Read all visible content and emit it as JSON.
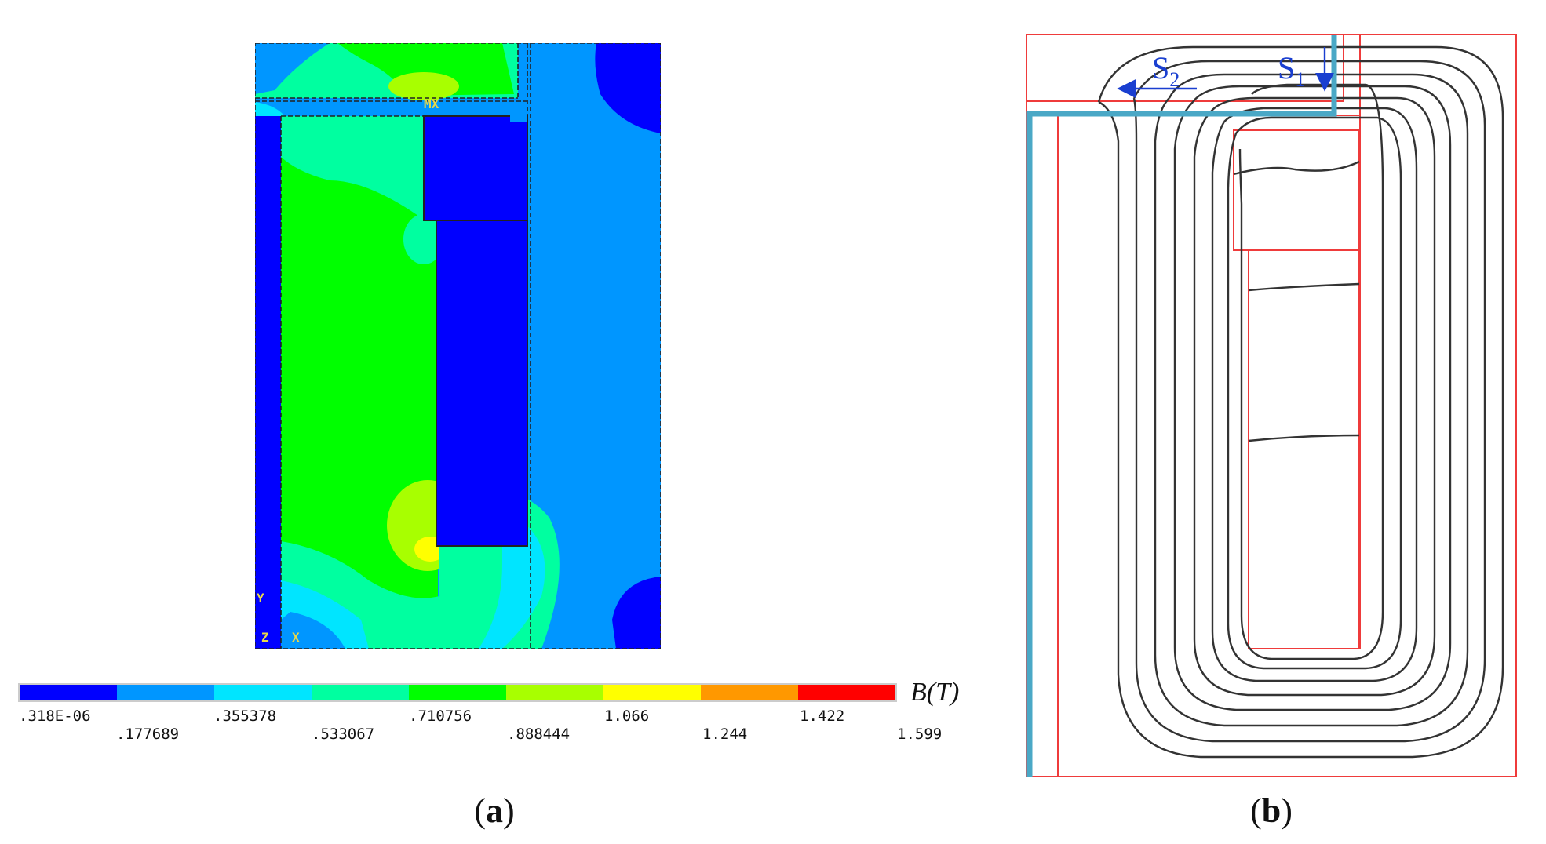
{
  "colors": {
    "bands": [
      "#0000ff",
      "#0096ff",
      "#00e5ff",
      "#00ffa0",
      "#00ff00",
      "#a8ff00",
      "#ffff00",
      "#ff9800",
      "#ff0000"
    ],
    "outline_red": "#ef3b3b",
    "path_blue": "#4aa8c6",
    "flux_line": "#333333",
    "arrow_blue": "#1a3fd0"
  },
  "panel_a": {
    "plot_markers": {
      "max": "MX",
      "y_axis": "Y",
      "x_axis": "X",
      "origin": "Z"
    },
    "legend": {
      "unit_label": "B(T)",
      "levels_top": [
        ".318E-06",
        ".355378",
        ".710756",
        "1.066",
        "1.422"
      ],
      "levels_bottom": [
        ".177689",
        ".533067",
        ".888444",
        "1.244",
        "1.599"
      ]
    },
    "caption": {
      "open": "(",
      "letter": "a",
      "close": ")"
    }
  },
  "panel_b": {
    "s1": {
      "main": "S",
      "sub": "1"
    },
    "s2": {
      "main": "S",
      "sub": "2"
    },
    "caption": {
      "open": "(",
      "letter": "b",
      "close": ")"
    }
  }
}
